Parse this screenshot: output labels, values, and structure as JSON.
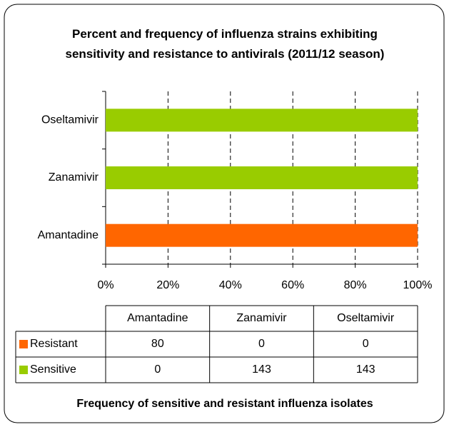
{
  "chart_data": {
    "type": "bar",
    "orientation": "horizontal",
    "stacked": "percent",
    "title": "Percent and frequency of influenza strains exhibiting sensitivity and resistance to antivirals (2011/12 season)",
    "categories": [
      "Amantadine",
      "Zanamivir",
      "Oseltamivir"
    ],
    "series": [
      {
        "name": "Resistant",
        "color": "#ff6600",
        "values": [
          80,
          0,
          0
        ]
      },
      {
        "name": "Sensitive",
        "color": "#99cc00",
        "values": [
          0,
          143,
          143
        ]
      }
    ],
    "xlim": [
      0,
      100
    ],
    "xticks": [
      {
        "value": 0,
        "label": "0%"
      },
      {
        "value": 20,
        "label": "20%"
      },
      {
        "value": 40,
        "label": "40%"
      },
      {
        "value": 60,
        "label": "60%"
      },
      {
        "value": 80,
        "label": "80%"
      },
      {
        "value": 100,
        "label": "100%"
      }
    ],
    "grid": true,
    "footnote": "Frequency of sensitive and resistant influenza isolates"
  }
}
